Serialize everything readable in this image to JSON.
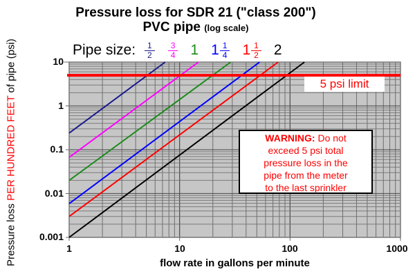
{
  "title": {
    "line1": "Pressure loss for SDR 21 (\"class 200\")",
    "line2_main": "PVC pipe",
    "line2_small": "(log scale)"
  },
  "legend": {
    "label": "Pipe size:",
    "items": [
      {
        "whole": "",
        "num": "1",
        "den": "2",
        "color": "#1a1a8c"
      },
      {
        "whole": "",
        "num": "3",
        "den": "4",
        "color": "#ff00ff"
      },
      {
        "whole": "1",
        "num": "",
        "den": "",
        "color": "#1a8a1a"
      },
      {
        "whole": "1",
        "num": "1",
        "den": "4",
        "color": "#0000ff"
      },
      {
        "whole": "1",
        "num": "1",
        "den": "2",
        "color": "#ff0000"
      },
      {
        "whole": "2",
        "num": "",
        "den": "",
        "color": "#000000"
      }
    ]
  },
  "axes": {
    "y_title_prefix": "Pressure loss ",
    "y_title_red": "PER HUNDRED FEET",
    "y_title_suffix": " of pipe (psi)",
    "x_title": "flow rate in gallons per minute",
    "y_ticks": [
      "10",
      "1",
      "0.1",
      "0.01",
      "0.001"
    ],
    "x_ticks": [
      "1",
      "10",
      "100",
      "1000"
    ]
  },
  "annotations": {
    "limit_label": "5 psi limit",
    "warning_bold": "WARNING:",
    "warning_line1_rest": " Do not",
    "warning_line2": "exceed 5 psi total",
    "warning_line3": "pressure loss in the",
    "warning_line4": "pipe from the meter",
    "warning_line5": "to the last sprinkler"
  },
  "colors": {
    "plot_bg": "#c6c6c6",
    "grid_major": "#4a4a4a",
    "grid_minor": "#6e6e6e",
    "limit_line": "#ff0000"
  },
  "chart_data": {
    "type": "line",
    "title": "Pressure loss for SDR 21 (\"class 200\") PVC pipe (log scale)",
    "xlabel": "flow rate in gallons per minute",
    "ylabel": "Pressure loss PER HUNDRED FEET of pipe (psi)",
    "xscale": "log",
    "yscale": "log",
    "xlim": [
      1,
      1000
    ],
    "ylim": [
      0.001,
      10
    ],
    "x_ticks": [
      1,
      10,
      100,
      1000
    ],
    "y_ticks": [
      0.001,
      0.01,
      0.1,
      1,
      10
    ],
    "grid": true,
    "legend_title": "Pipe size:",
    "legend_position": "top",
    "series": [
      {
        "name": "1/2",
        "color": "#1a1a8c",
        "x": [
          1,
          7.4
        ],
        "y": [
          0.24,
          10
        ]
      },
      {
        "name": "3/4",
        "color": "#ff00ff",
        "x": [
          1,
          14.8
        ],
        "y": [
          0.067,
          10
        ]
      },
      {
        "name": "1",
        "color": "#1a8a1a",
        "x": [
          1,
          29
        ],
        "y": [
          0.02,
          10
        ]
      },
      {
        "name": "1 1/4",
        "color": "#0000ff",
        "x": [
          1,
          53
        ],
        "y": [
          0.0059,
          10
        ]
      },
      {
        "name": "1 1/2",
        "color": "#ff0000",
        "x": [
          1,
          78
        ],
        "y": [
          0.003,
          10
        ]
      },
      {
        "name": "2",
        "color": "#000000",
        "x": [
          1,
          135
        ],
        "y": [
          0.001,
          10
        ]
      }
    ],
    "reference_lines": [
      {
        "type": "horizontal",
        "y": 5,
        "label": "5 psi limit",
        "color": "#ff0000"
      }
    ],
    "annotations": [
      "WARNING: Do not exceed 5 psi total pressure loss in the pipe from the meter to the last sprinkler"
    ]
  }
}
